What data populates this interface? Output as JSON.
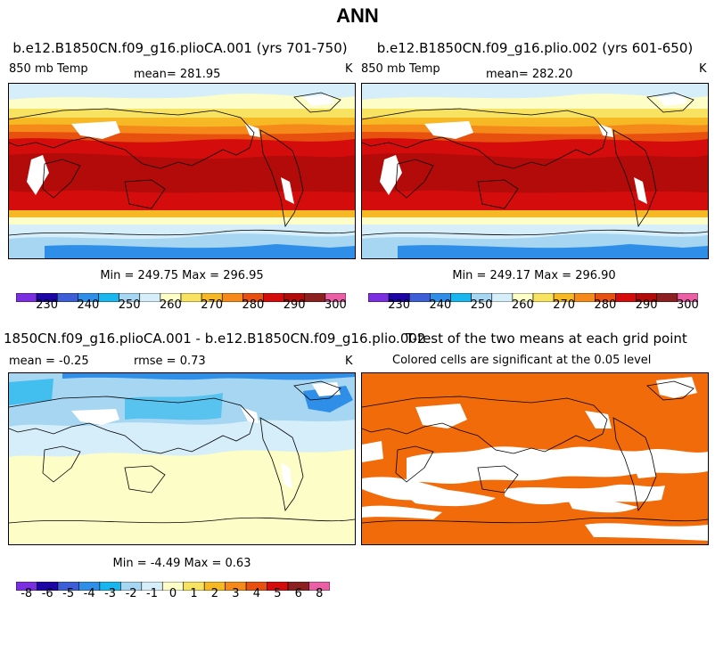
{
  "main_title": "ANN",
  "panels": [
    {
      "title": "b.e12.B1850CN.f09_g16.plioCA.001 (yrs 701-750)",
      "left_label": "850 mb Temp",
      "center_label": "mean= 281.95",
      "right_label": "K",
      "stats": "Min = 249.75 Max = 296.95"
    },
    {
      "title": "b.e12.B1850CN.f09_g16.plio.002 (yrs 601-650)",
      "left_label": "850 mb Temp",
      "center_label": "mean= 282.20",
      "right_label": "K",
      "stats": "Min = 249.17 Max = 296.90"
    },
    {
      "title": "1850CN.f09_g16.plioCA.001 - b.e12.B1850CN.f09_g16.plio.002",
      "left_label": "mean =  -0.25",
      "center_label": "rmse =    0.73",
      "right_label": "K",
      "stats": "Min =  -4.49 Max =    0.63"
    },
    {
      "title": "T-test of the two means at each grid point",
      "subtitle": "Colored cells are significant at the 0.05 level"
    }
  ],
  "colorbar_abs": {
    "colors": [
      "#7a2fe0",
      "#1d05a6",
      "#3d5ed6",
      "#2f8fe8",
      "#19b5ee",
      "#a6d6f2",
      "#d5eefa",
      "#fdfdc8",
      "#f7e262",
      "#f6b825",
      "#f58a1a",
      "#e8500f",
      "#d40c0c",
      "#b30a0a",
      "#8c1f1f",
      "#ea5fa6"
    ],
    "labels": [
      "230",
      "240",
      "250",
      "260",
      "270",
      "280",
      "290",
      "300"
    ]
  },
  "colorbar_diff": {
    "colors": [
      "#7a2fe0",
      "#1d05a6",
      "#3d5ed6",
      "#2f8fe8",
      "#19b5ee",
      "#a6d6f2",
      "#d5eefa",
      "#fdfdc8",
      "#f7e262",
      "#f6b825",
      "#f58a1a",
      "#e8500f",
      "#d40c0c",
      "#8c1f1f",
      "#ea5fa6"
    ],
    "labels": [
      "-8",
      "-6",
      "-5",
      "-4",
      "-3",
      "-2",
      "-1",
      "0",
      "1",
      "2",
      "3",
      "4",
      "5",
      "6",
      "8"
    ]
  },
  "significance_color": "#f26b0b"
}
